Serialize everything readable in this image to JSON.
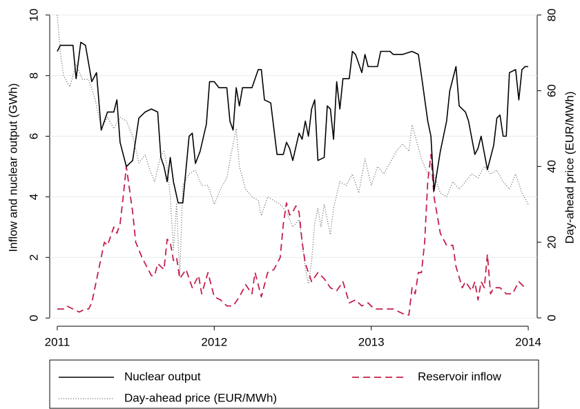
{
  "chart_data": {
    "type": "line",
    "y_label": "Inflow and nuclear output (GWh)",
    "y2_label": "Day-ahead price (EUR/MWh)",
    "xlim": [
      2010.952,
      2014.057
    ],
    "xticks": [
      2011,
      2012,
      2013,
      2014
    ],
    "ylim": [
      -0.27,
      10.2
    ],
    "yticks": [
      0,
      2,
      4,
      6,
      8,
      10
    ],
    "y2lim": [
      -2.2,
      81.6
    ],
    "y2ticks": [
      0,
      20,
      40,
      60,
      80
    ],
    "grid": true,
    "legend": "bottom",
    "series": [
      {
        "name": "Nuclear output",
        "color": "#000000",
        "style": "solid",
        "x": [
          2011.0,
          2011.02,
          2011.1,
          2011.12,
          2011.15,
          2011.18,
          2011.22,
          2011.25,
          2011.28,
          2011.32,
          2011.36,
          2011.38,
          2011.4,
          2011.44,
          2011.48,
          2011.52,
          2011.56,
          2011.6,
          2011.64,
          2011.66,
          2011.68,
          2011.7,
          2011.72,
          2011.74,
          2011.77,
          2011.8,
          2011.84,
          2011.86,
          2011.88,
          2011.91,
          2011.95,
          2011.97,
          2012.0,
          2012.03,
          2012.08,
          2012.1,
          2012.12,
          2012.14,
          2012.16,
          2012.18,
          2012.24,
          2012.28,
          2012.3,
          2012.32,
          2012.36,
          2012.4,
          2012.44,
          2012.46,
          2012.48,
          2012.5,
          2012.54,
          2012.56,
          2012.58,
          2012.6,
          2012.62,
          2012.64,
          2012.66,
          2012.7,
          2012.72,
          2012.74,
          2012.76,
          2012.78,
          2012.8,
          2012.82,
          2012.86,
          2012.88,
          2012.9,
          2012.94,
          2012.96,
          2012.98,
          2013.02,
          2013.04,
          2013.06,
          2013.12,
          2013.14,
          2013.2,
          2013.26,
          2013.3,
          2013.32,
          2013.36,
          2013.38,
          2013.4,
          2013.44,
          2013.48,
          2013.5,
          2013.54,
          2013.56,
          2013.6,
          2013.62,
          2013.66,
          2013.68,
          2013.7,
          2013.74,
          2013.78,
          2013.8,
          2013.82,
          2013.84,
          2013.86,
          2013.88,
          2013.92,
          2013.94,
          2013.96,
          2013.98,
          2014.0
        ],
        "values": [
          8.8,
          9.0,
          9.0,
          7.9,
          9.1,
          9.0,
          7.8,
          8.1,
          6.2,
          6.8,
          6.8,
          7.2,
          5.8,
          5.0,
          5.2,
          6.6,
          6.8,
          6.9,
          6.8,
          5.3,
          5.0,
          4.5,
          5.3,
          4.5,
          3.8,
          3.8,
          6.0,
          6.1,
          5.1,
          5.5,
          6.4,
          7.8,
          7.8,
          7.6,
          7.6,
          6.5,
          6.2,
          7.6,
          7.0,
          7.6,
          7.6,
          8.2,
          8.2,
          7.2,
          7.1,
          5.4,
          5.4,
          5.8,
          5.6,
          5.2,
          6.1,
          5.9,
          6.5,
          6.0,
          6.9,
          7.2,
          5.2,
          5.3,
          7.0,
          6.9,
          5.9,
          7.8,
          6.9,
          7.9,
          7.9,
          8.8,
          8.7,
          8.1,
          8.7,
          8.3,
          8.3,
          8.3,
          8.8,
          8.8,
          8.7,
          8.7,
          8.8,
          8.7,
          8.0,
          6.5,
          6.0,
          4.2,
          5.5,
          6.5,
          7.5,
          8.3,
          7.0,
          6.8,
          6.5,
          5.4,
          5.6,
          6.0,
          4.9,
          5.7,
          6.6,
          6.7,
          6.0,
          6.0,
          8.1,
          8.2,
          7.2,
          8.2,
          8.3,
          8.3
        ]
      },
      {
        "name": "Reservoir inflow",
        "color": "#c41e4a",
        "style": "dashed",
        "x": [
          2011.0,
          2011.04,
          2011.06,
          2011.1,
          2011.14,
          2011.18,
          2011.2,
          2011.22,
          2011.26,
          2011.3,
          2011.32,
          2011.36,
          2011.38,
          2011.4,
          2011.42,
          2011.44,
          2011.48,
          2011.5,
          2011.54,
          2011.56,
          2011.6,
          2011.62,
          2011.64,
          2011.68,
          2011.7,
          2011.72,
          2011.74,
          2011.76,
          2011.78,
          2011.82,
          2011.86,
          2011.9,
          2011.92,
          2011.96,
          2012.0,
          2012.04,
          2012.08,
          2012.12,
          2012.16,
          2012.2,
          2012.24,
          2012.26,
          2012.3,
          2012.34,
          2012.38,
          2012.42,
          2012.44,
          2012.46,
          2012.48,
          2012.5,
          2012.52,
          2012.54,
          2012.56,
          2012.58,
          2012.62,
          2012.66,
          2012.7,
          2012.74,
          2012.78,
          2012.82,
          2012.86,
          2012.9,
          2012.94,
          2012.98,
          2013.02,
          2013.06,
          2013.1,
          2013.14,
          2013.18,
          2013.22,
          2013.24,
          2013.26,
          2013.28,
          2013.3,
          2013.32,
          2013.34,
          2013.36,
          2013.38,
          2013.4,
          2013.44,
          2013.48,
          2013.52,
          2013.54,
          2013.58,
          2013.6,
          2013.64,
          2013.66,
          2013.68,
          2013.7,
          2013.72,
          2013.74,
          2013.76,
          2013.78,
          2013.82,
          2013.86,
          2013.9,
          2013.94,
          2013.98
        ],
        "values": [
          0.3,
          0.3,
          0.4,
          0.3,
          0.2,
          0.3,
          0.3,
          0.5,
          1.5,
          2.5,
          2.4,
          3.0,
          2.8,
          3.1,
          4.0,
          5.0,
          3.5,
          2.5,
          2.0,
          1.8,
          1.4,
          1.4,
          1.8,
          1.6,
          2.6,
          2.5,
          1.9,
          2.0,
          1.3,
          1.6,
          1.0,
          1.4,
          0.8,
          1.5,
          0.7,
          0.6,
          0.4,
          0.4,
          0.7,
          1.1,
          0.8,
          1.5,
          0.7,
          1.5,
          1.6,
          2.0,
          3.1,
          3.8,
          3.4,
          3.5,
          3.7,
          3.5,
          2.5,
          1.8,
          1.2,
          1.5,
          1.3,
          1.0,
          0.9,
          1.2,
          0.5,
          0.6,
          0.4,
          0.5,
          0.3,
          0.3,
          0.3,
          0.3,
          0.2,
          0.1,
          0.1,
          1.0,
          0.8,
          1.5,
          1.5,
          2.5,
          4.5,
          5.4,
          4.0,
          2.8,
          2.4,
          2.4,
          1.7,
          1.0,
          1.2,
          0.9,
          1.2,
          0.6,
          1.2,
          1.0,
          2.1,
          0.8,
          1.0,
          1.0,
          0.8,
          0.8,
          1.2,
          1.0
        ]
      },
      {
        "name": "Day-ahead price (EUR/MWh)",
        "color": "#555555",
        "style": "dotted",
        "axis": "y2",
        "x": [
          2011.0,
          2011.02,
          2011.04,
          2011.08,
          2011.12,
          2011.16,
          2011.2,
          2011.24,
          2011.28,
          2011.32,
          2011.36,
          2011.4,
          2011.44,
          2011.48,
          2011.52,
          2011.56,
          2011.6,
          2011.62,
          2011.66,
          2011.68,
          2011.7,
          2011.72,
          2011.74,
          2011.76,
          2011.78,
          2011.8,
          2011.84,
          2011.88,
          2011.92,
          2011.96,
          2012.0,
          2012.04,
          2012.08,
          2012.12,
          2012.14,
          2012.16,
          2012.2,
          2012.24,
          2012.28,
          2012.3,
          2012.34,
          2012.38,
          2012.42,
          2012.46,
          2012.5,
          2012.54,
          2012.56,
          2012.58,
          2012.6,
          2012.62,
          2012.64,
          2012.66,
          2012.68,
          2012.7,
          2012.74,
          2012.76,
          2012.8,
          2012.84,
          2012.88,
          2012.92,
          2012.96,
          2013.0,
          2013.04,
          2013.08,
          2013.12,
          2013.16,
          2013.2,
          2013.24,
          2013.26,
          2013.28,
          2013.32,
          2013.36,
          2013.4,
          2013.44,
          2013.48,
          2013.52,
          2013.56,
          2013.6,
          2013.64,
          2013.68,
          2013.72,
          2013.76,
          2013.8,
          2013.84,
          2013.88,
          2013.92,
          2013.96,
          2014.0
        ],
        "values": [
          80,
          70,
          64,
          61,
          67,
          63,
          63,
          58,
          50,
          53,
          50,
          53,
          52,
          48,
          41,
          43,
          38,
          36,
          43,
          44,
          40,
          32,
          18,
          30,
          11,
          35,
          38,
          39,
          35,
          35,
          30,
          34,
          37,
          46,
          50,
          40,
          34,
          32,
          31,
          27,
          32,
          31,
          30,
          28,
          24,
          26,
          20,
          13,
          9,
          15,
          25,
          29,
          24,
          30,
          22,
          29,
          36,
          35,
          38,
          33,
          42,
          35,
          40,
          38,
          41,
          44,
          46,
          44,
          51,
          48,
          42,
          38,
          38,
          33,
          32,
          36,
          34,
          36,
          38,
          37,
          40,
          38,
          39,
          36,
          34,
          38,
          33,
          30
        ]
      }
    ]
  }
}
